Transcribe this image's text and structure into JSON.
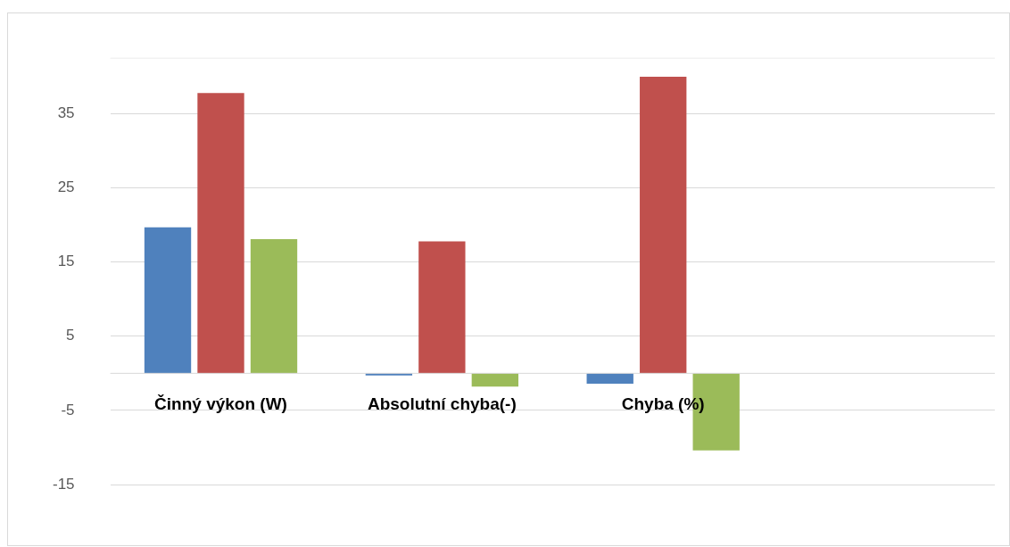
{
  "chart_data": {
    "type": "bar",
    "categories": [
      "Činný výkon (W)",
      "Absolutní chyba(-)",
      "Chyba (%)",
      null
    ],
    "series": [
      {
        "color": "#4f81bd",
        "values": [
          19.7,
          -0.3,
          -1.4,
          null
        ]
      },
      {
        "color": "#c0504d",
        "values": [
          37.8,
          17.8,
          40,
          null
        ]
      },
      {
        "color": "#9bbb59",
        "values": [
          18.1,
          -1.8,
          -10.4,
          null
        ]
      }
    ],
    "ylim": [
      -15,
      42.5
    ],
    "yticks": [
      -15,
      -5,
      5,
      15,
      25,
      35
    ],
    "grid": "y",
    "legend": false
  }
}
